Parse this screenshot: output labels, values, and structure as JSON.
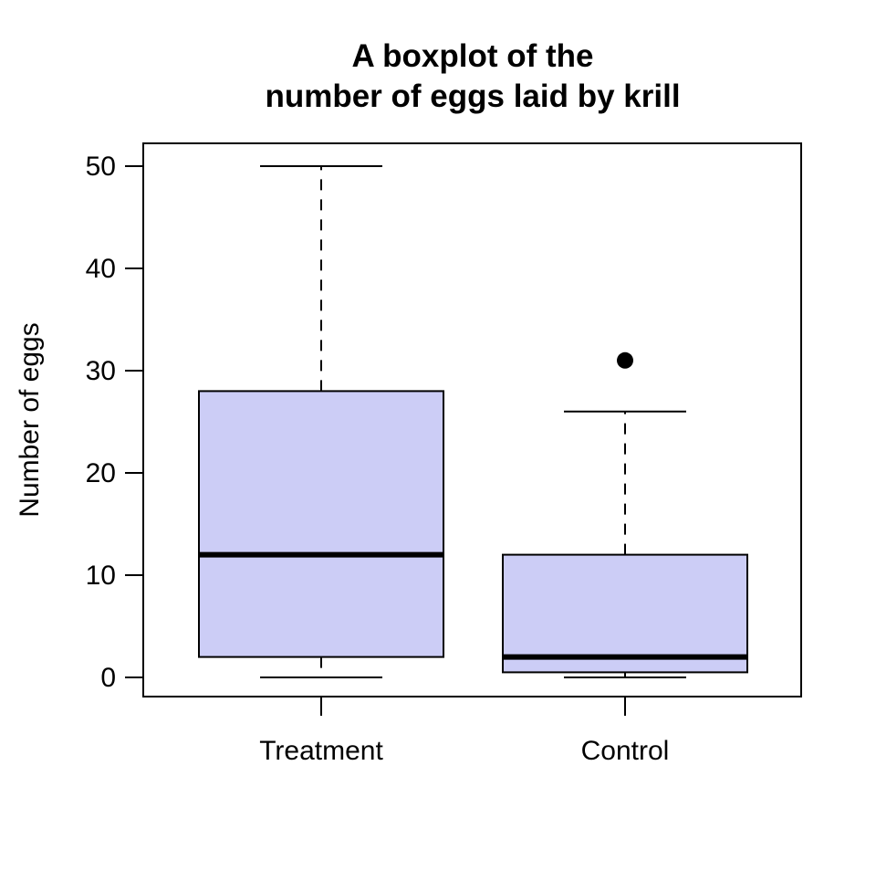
{
  "chart_data": {
    "type": "boxplot",
    "title": "A boxplot of the\nnumber of eggs laid by krill",
    "title_lines": [
      "A boxplot of the",
      "number of eggs laid by krill"
    ],
    "ylabel": "Number of eggs",
    "xlabel": "",
    "categories": [
      "Treatment",
      "Control"
    ],
    "yticks": [
      0,
      10,
      20,
      30,
      40,
      50
    ],
    "ylim": [
      0,
      50
    ],
    "grid": false,
    "legend": false,
    "series": [
      {
        "name": "Treatment",
        "whisker_low": 0,
        "q1": 2,
        "median": 12,
        "q3": 28,
        "whisker_high": 50,
        "outliers": []
      },
      {
        "name": "Control",
        "whisker_low": 0,
        "q1": 0.5,
        "median": 2,
        "q3": 12,
        "whisker_high": 26,
        "outliers": [
          31
        ]
      }
    ],
    "colors": {
      "box_fill": "#cccdf6",
      "line": "#000000",
      "background": "#ffffff",
      "outlier_fill": "#000000"
    }
  }
}
